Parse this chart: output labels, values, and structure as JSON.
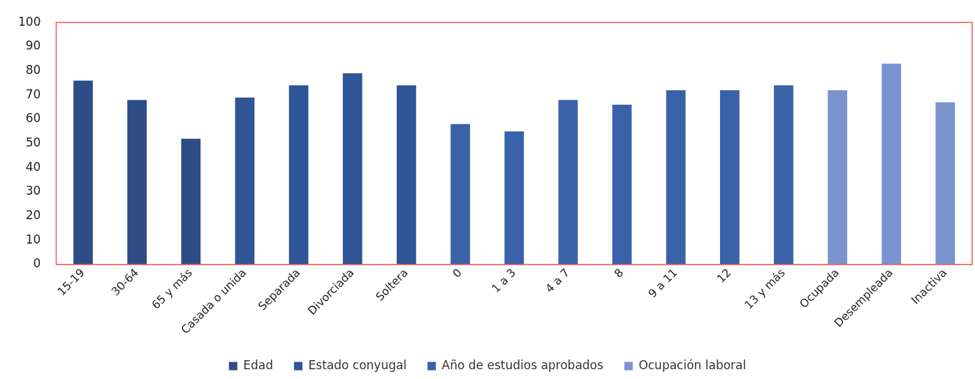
{
  "chart_data": {
    "type": "bar",
    "categories": [
      "15-19",
      "30-64",
      "65 y más",
      "Casada o unida",
      "Separada",
      "Divorciada",
      "Soltera",
      "0",
      "1 a 3",
      "4 a 7",
      "8",
      "9 a 11",
      "12",
      "13 y más",
      "Ocupada",
      "Desempleada",
      "Inactiva"
    ],
    "series": [
      {
        "name": "Edad",
        "color": "#2e4d87",
        "values": [
          76,
          68,
          52,
          null,
          null,
          null,
          null,
          null,
          null,
          null,
          null,
          null,
          null,
          null,
          null,
          null,
          null
        ]
      },
      {
        "name": "Estado conyugal",
        "color": "#2f5597",
        "values": [
          null,
          null,
          null,
          69,
          74,
          79,
          74,
          null,
          null,
          null,
          null,
          null,
          null,
          null,
          null,
          null,
          null
        ]
      },
      {
        "name": "Año de estudios aprobados",
        "color": "#3a62a8",
        "values": [
          null,
          null,
          null,
          null,
          null,
          null,
          null,
          58,
          55,
          68,
          66,
          72,
          72,
          74,
          null,
          null,
          null
        ]
      },
      {
        "name": "Ocupación laboral",
        "color": "#7a93cf",
        "values": [
          null,
          null,
          null,
          null,
          null,
          null,
          null,
          null,
          null,
          null,
          null,
          null,
          null,
          null,
          72,
          83,
          67
        ]
      }
    ],
    "ylim": [
      0,
      100
    ],
    "yticks": [
      0,
      10,
      20,
      30,
      40,
      50,
      60,
      70,
      80,
      90,
      100
    ],
    "grid": false,
    "legend": "bottom"
  }
}
